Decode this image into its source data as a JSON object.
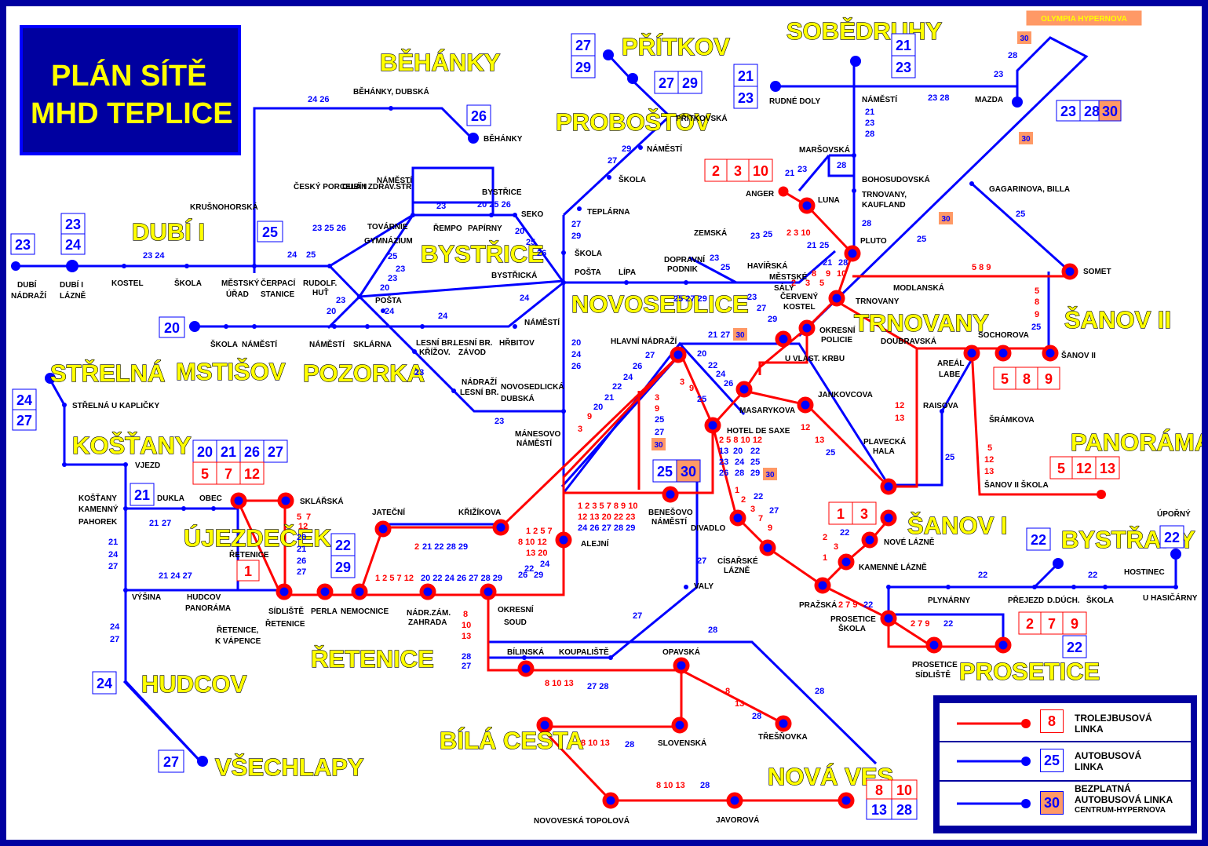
{
  "title": {
    "line1": "PLÁN SÍTĚ",
    "line2": "MHD TEPLICE"
  },
  "colors": {
    "trolleybus": "#ff0000",
    "bus": "#0000ff",
    "free_bus_badge": "#ff9966",
    "area_label": "#ffff00",
    "frame": "#0000a0"
  },
  "areas": {
    "behanky": "BĚHÁNKY",
    "pritkov": "PŘÍTKOV",
    "probostov": "PROBOŠTOV",
    "sobedruhy": "SOBĚDRUHY",
    "dubi": "DUBÍ I",
    "bystrice": "BYSTŘICE",
    "novosedlice": "NOVOSEDLICE",
    "trnovany": "TRNOVANY",
    "sanov2": "ŠANOV II",
    "strelna": "STŘELNÁ",
    "mstisov": "MSTIŠOV",
    "pozorka": "POZORKA",
    "kostany": "KOŠŤANY",
    "panorama": "PANORÁMA",
    "ujezdecek": "ÚJEZDEČEK",
    "sanov1": "ŠANOV I",
    "bystrany": "BYSTŘANY",
    "retenice": "ŘETENICE",
    "hudcov": "HUDCOV",
    "prosetice": "PROSETICE",
    "bila_cesta": "BÍLÁ CESTA",
    "nova_ves": "NOVÁ VES",
    "vsechlapy": "VŠECHLAPY"
  },
  "stops": {
    "behanky_dubska": "BĚHÁNKY, DUBSKÁ",
    "behanky": "BĚHÁNKY",
    "pritkovska": "PŘÍTKOVSKÁ",
    "namesti_prob": "NÁMĚSTÍ",
    "skola_prob": "ŠKOLA",
    "teplarna": "TEPLÁRNA",
    "rudne_doly": "RUDNÉ DOLY",
    "namesti_sob": "NÁMĚSTÍ",
    "mazda": "MAZDA",
    "olympia": "OLYMPIA HYPERNOVA",
    "krusnohorska": "KRUŠNOHORSKÁ",
    "cesky_porcelan": "ČESKÝ PORCELÁN",
    "dubi_zdrav": "DUBÍ I ZDRAV.STŘ",
    "namesti_dubi": "NÁMĚSTÍ",
    "bystrice_stop": "BYSTŘICE",
    "seko": "SEKO",
    "tovarnie": "TOVÁRNIE",
    "gymnazium": "GYMNÁZIUM",
    "rempo": "ŘEMPO",
    "papirny": "PAPÍRNY",
    "marsovska": "MARŠOVSKÁ",
    "bohosudovska": "BOHOSUDOVSKÁ",
    "trnovany_kaufland": "TRNOVANY,",
    "kaufland": "KAUFLAND",
    "anger": "ANGER",
    "luna": "LUNA",
    "gagarinova": "GAGARINOVA, BILLA",
    "dubi_nadrazi_1": "DUBÍ",
    "dubi_nadrazi_2": "NÁDRAŽÍ",
    "dubi_lazne_1": "DUBÍ I",
    "dubi_lazne_2": "LÁZNĚ",
    "kostel": "KOSTEL",
    "skola_dubi": "ŠKOLA",
    "mestsky_urad_1": "MĚSTSKÝ",
    "mestsky_urad_2": "ÚŘAD",
    "cerpaci_1": "ČERPACÍ",
    "cerpaci_2": "STANICE",
    "rudolf_1": "RUDOLF.",
    "rudolf_2": "HUŤ",
    "skola_novo": "ŠKOLA",
    "posta_novo": "POŠTA",
    "lipa": "LÍPA",
    "dopravni_1": "DOPRAVNÍ",
    "dopravni_2": "PODNIK",
    "zemska": "ZEMSKÁ",
    "havirska": "HAVÍŘSKÁ",
    "mestske_1": "MĚSTSKÉ",
    "mestske_2": "SÁLY",
    "cerveny_1": "ČERVENÝ",
    "cerveny_2": "KOSTEL",
    "pluto": "PLUTO",
    "somet": "SOMET",
    "modlanska": "MODLANSKÁ",
    "trnovany_stop": "TRNOVANY",
    "okresni_policie_1": "OKRESNÍ",
    "okresni_policie_2": "POLICIE",
    "doubravska": "DOUBRAVSKÁ",
    "sochorova": "SOCHOROVA",
    "sanov2_stop": "ŠANOV II",
    "areal_1": "AREÁL",
    "areal_2": "LABE",
    "bystricka": "BYSTŘICKÁ",
    "posta_poz": "POŠTA",
    "namesti_novo": "NÁMĚSTÍ",
    "hrbitov": "HŘBITOV",
    "skola_mst": "ŠKOLA",
    "namesti_mst": "NÁMĚSTÍ",
    "namesti_poz": "NÁMĚSTÍ",
    "sklarna": "SKLÁRNA",
    "lesni_kriz_1": "LESNÍ BR.",
    "lesni_kriz_2": "KŘÍŽOV.",
    "lesni_zavod_1": "LESNÍ BR.",
    "lesni_zavod_2": "ZÁVOD",
    "nadrazi_lesni_1": "NÁDRAŽÍ",
    "nadrazi_lesni_2": "LESNÍ BR.",
    "novosedlicka_1": "NOVOSEDLICKÁ",
    "novosedlicka_2": "DUBSKÁ",
    "hlavni_nadrazi": "HLAVNÍ NÁDRAŽÍ",
    "u_vlast_krbu": "U VLAST. KRBU",
    "jankovcova": "JANKOVCOVA",
    "raisova": "RAISOVA",
    "sramkova": "ŠRÁMKOVA",
    "masarykova": "MASARYKOVA",
    "hotel_de_saxe": "HOTEL DE SAXE",
    "plavecka_1": "PLAVECKÁ",
    "plavecka_2": "HALA",
    "strelna_kaplicky": "STŘELNÁ U KAPLIČKY",
    "manesovo_1": "MÁNESOVO",
    "manesovo_2": "NÁMĚSTÍ",
    "vjezd": "VJEZD",
    "dukla": "DUKLA",
    "obec": "OBEC",
    "sklarska": "SKLÁŘSKÁ",
    "kostany_pahorek_1": "KOŠŤANY",
    "kostany_pahorek_2": "KAMENNÝ",
    "kostany_pahorek_3": "PAHOREK",
    "jatecni": "JATEČNÍ",
    "krizikova": "KŘIŽÍKOVA",
    "sanov2_skola": "ŠANOV II ŠKOLA",
    "benesovo_1": "BENEŠOVO",
    "benesovo_2": "NÁMĚSTÍ",
    "divadlo": "DIVADLO",
    "nove_lazne": "NOVÉ LÁZNĚ",
    "retenice_stop": "ŘETENICE",
    "alejni": "ALEJNÍ",
    "kamenne_lazne": "KAMENNÉ LÁZNĚ",
    "cisarske_1": "CÍSAŘSKÉ",
    "cisarske_2": "LÁZNĚ",
    "valy": "VALY",
    "uporny": "ÚPOŘNÝ",
    "hostinec": "HOSTINEC",
    "vysina": "VÝŠINA",
    "hudcov_panorama_1": "HUDCOV",
    "hudcov_panorama_2": "PANORÁMA",
    "sidliste_ret_1": "SÍDLIŠTĚ",
    "sidliste_ret_2": "ŘETENICE",
    "perla": "PERLA",
    "nemocnice": "NEMOCNICE",
    "nadr_zahrada_1": "NÁDR.ZÁM.",
    "nadr_zahrada_2": "ZAHRADA",
    "okresni_soud_1": "OKRESNÍ",
    "okresni_soud_2": "SOUD",
    "prazska": "PRAŽSKÁ",
    "plynarny": "PLYNÁRNY",
    "prejezd": "PŘEJEZD",
    "d_duch": "D.DÚCH.",
    "skola_byst": "ŠKOLA",
    "u_hasicarny": "U HASIČÁRNY",
    "retenice_vapence_1": "ŘETENICE,",
    "retenice_vapence_2": "K VÁPENCE",
    "prosetice_skola_1": "PROSETICE",
    "prosetice_skola_2": "ŠKOLA",
    "bilinska": "BÍLINSKÁ",
    "koupaliste": "KOUPALIŠTĚ",
    "opavska": "OPAVSKÁ",
    "prosetice_sidliste_1": "PROSETICE",
    "prosetice_sidliste_2": "SÍDLIŠTĚ",
    "tresnovka": "TŘEŠŇOVKA",
    "slovenska": "SLOVENSKÁ",
    "novoveska": "NOVOVESKÁ",
    "topolova": "TOPOLOVÁ",
    "javorova": "JAVOROVÁ"
  },
  "legend": {
    "trolley": {
      "badge": "8",
      "line1": "TROLEJBUSOVÁ",
      "line2": "LINKA"
    },
    "bus": {
      "badge": "25",
      "line1": "AUTOBUSOVÁ",
      "line2": "LINKA"
    },
    "free": {
      "badge": "30",
      "line1": "BEZPLATNÁ",
      "line2": "AUTOBUSOVÁ LINKA",
      "line3": "CENTRUM-HYPERNOVA"
    }
  }
}
